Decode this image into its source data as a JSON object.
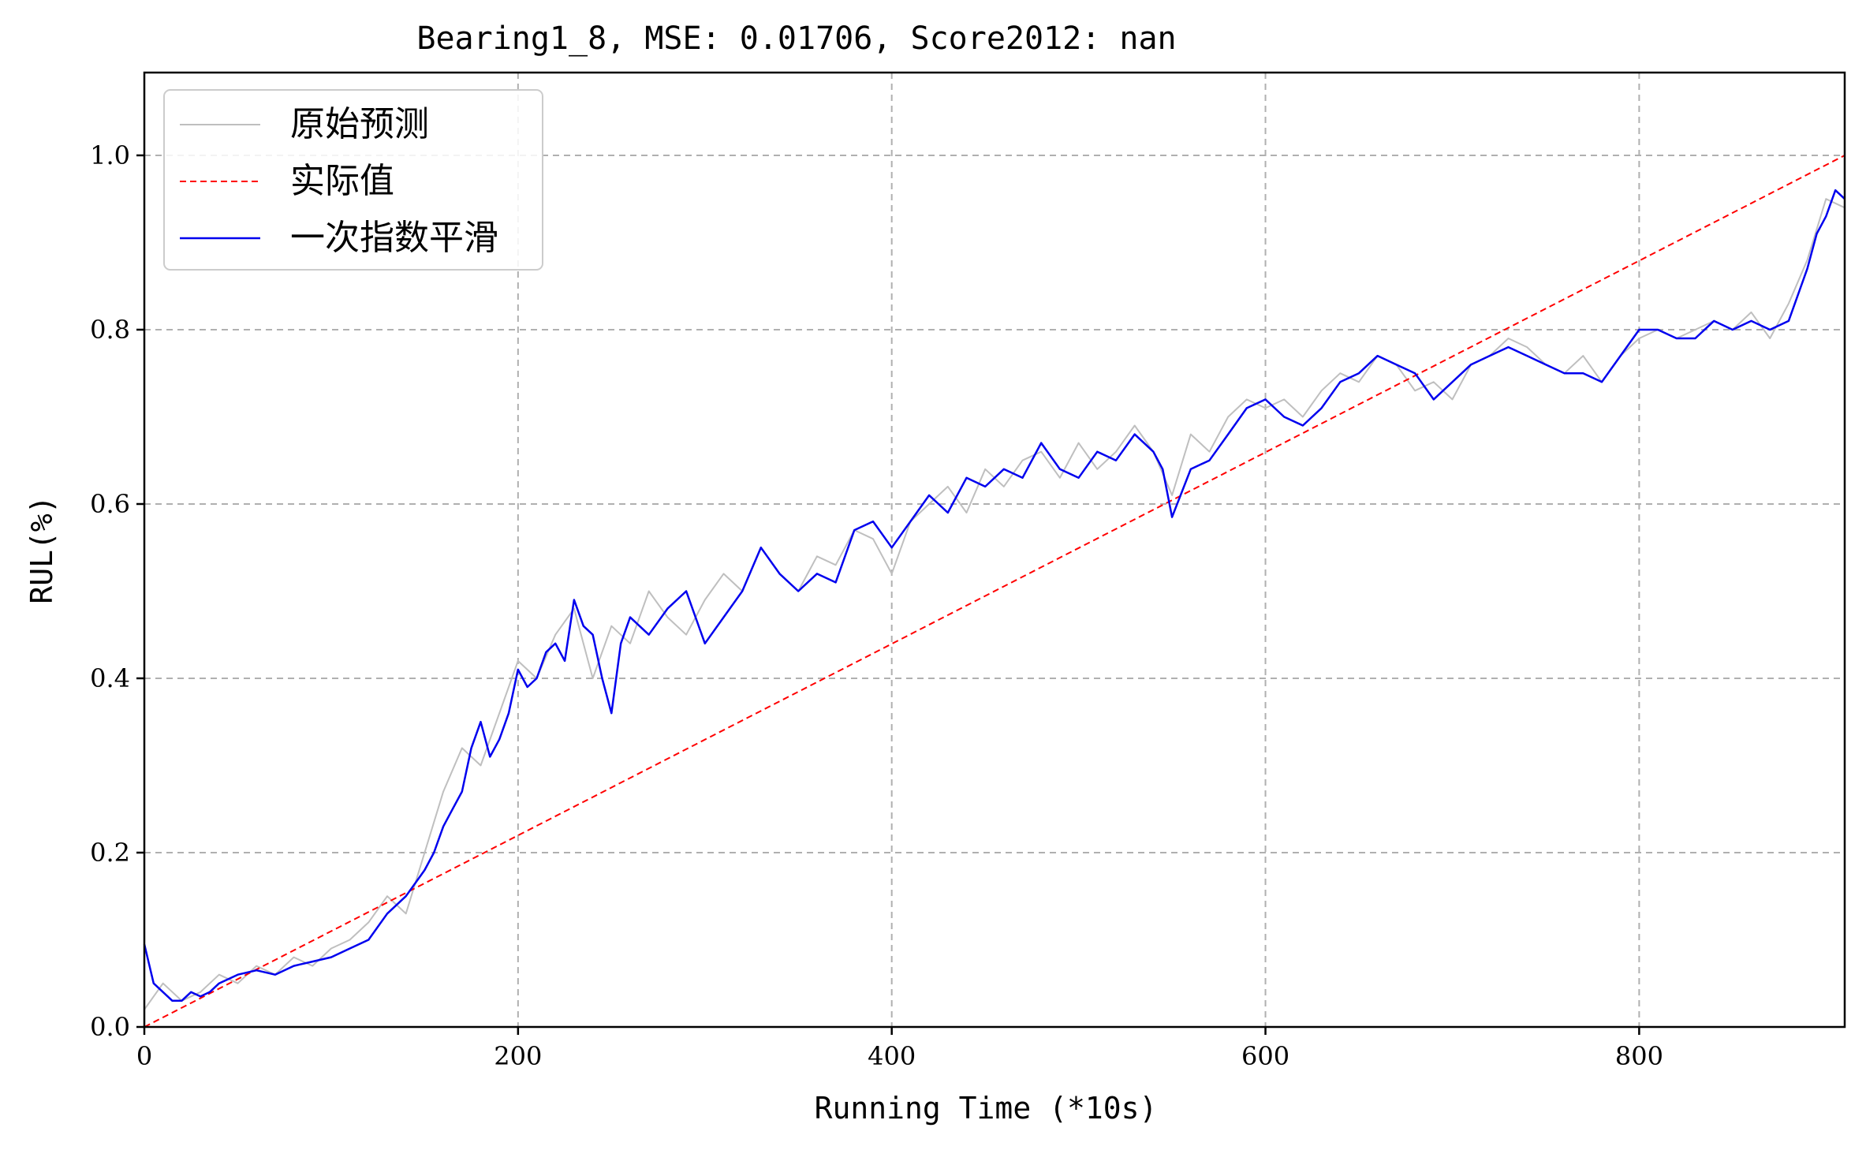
{
  "chart_data": {
    "type": "line",
    "title": "Bearing1_8, MSE: 0.01706, Score2012: nan",
    "xlabel": "Running Time (*10s)",
    "ylabel": "RUL(%)",
    "xlim": [
      0,
      910
    ],
    "ylim": [
      0.0,
      1.095
    ],
    "xticks": [
      0,
      200,
      400,
      600,
      800
    ],
    "xtick_labels": [
      "0",
      "200",
      "400",
      "600",
      "800"
    ],
    "yticks": [
      0.0,
      0.2,
      0.4,
      0.6,
      0.8,
      1.0
    ],
    "ytick_labels": [
      "0.0",
      "0.2",
      "0.4",
      "0.6",
      "0.8",
      "1.0"
    ],
    "grid": true,
    "legend_position": "top-left",
    "series": [
      {
        "name": "原始预测",
        "color": "#bfbfbf",
        "style": "solid",
        "x": [
          0,
          10,
          20,
          30,
          40,
          50,
          60,
          70,
          80,
          90,
          100,
          110,
          120,
          130,
          140,
          150,
          160,
          170,
          180,
          190,
          200,
          210,
          220,
          230,
          240,
          250,
          260,
          270,
          280,
          290,
          300,
          310,
          320,
          330,
          340,
          350,
          360,
          370,
          380,
          390,
          400,
          410,
          420,
          430,
          440,
          450,
          460,
          470,
          480,
          490,
          500,
          510,
          520,
          530,
          540,
          550,
          560,
          570,
          580,
          590,
          600,
          610,
          620,
          630,
          640,
          650,
          660,
          670,
          680,
          690,
          700,
          710,
          720,
          730,
          740,
          750,
          760,
          770,
          780,
          790,
          800,
          810,
          820,
          830,
          840,
          850,
          860,
          870,
          880,
          890,
          900,
          910
        ],
        "values": [
          0.02,
          0.05,
          0.03,
          0.04,
          0.06,
          0.05,
          0.07,
          0.06,
          0.08,
          0.07,
          0.09,
          0.1,
          0.12,
          0.15,
          0.13,
          0.2,
          0.27,
          0.32,
          0.3,
          0.36,
          0.42,
          0.4,
          0.45,
          0.48,
          0.4,
          0.46,
          0.44,
          0.5,
          0.47,
          0.45,
          0.49,
          0.52,
          0.5,
          0.55,
          0.52,
          0.5,
          0.54,
          0.53,
          0.57,
          0.56,
          0.52,
          0.58,
          0.6,
          0.62,
          0.59,
          0.64,
          0.62,
          0.65,
          0.66,
          0.63,
          0.67,
          0.64,
          0.66,
          0.69,
          0.66,
          0.61,
          0.68,
          0.66,
          0.7,
          0.72,
          0.71,
          0.72,
          0.7,
          0.73,
          0.75,
          0.74,
          0.77,
          0.76,
          0.73,
          0.74,
          0.72,
          0.76,
          0.77,
          0.79,
          0.78,
          0.76,
          0.75,
          0.77,
          0.74,
          0.77,
          0.79,
          0.8,
          0.79,
          0.8,
          0.81,
          0.8,
          0.82,
          0.79,
          0.83,
          0.88,
          0.95,
          0.94
        ]
      },
      {
        "name": "实际值",
        "color": "#ff0000",
        "style": "dashed",
        "x": [
          0,
          910
        ],
        "values": [
          0.0,
          1.0
        ]
      },
      {
        "name": "一次指数平滑",
        "color": "#0000ee",
        "style": "solid",
        "x": [
          0,
          5,
          10,
          15,
          20,
          25,
          30,
          35,
          40,
          50,
          60,
          70,
          80,
          90,
          100,
          110,
          120,
          130,
          140,
          150,
          155,
          160,
          165,
          170,
          175,
          180,
          185,
          190,
          195,
          200,
          205,
          210,
          215,
          220,
          225,
          230,
          235,
          240,
          245,
          250,
          255,
          260,
          270,
          280,
          290,
          300,
          310,
          320,
          330,
          340,
          350,
          360,
          370,
          380,
          390,
          400,
          410,
          420,
          430,
          440,
          450,
          460,
          470,
          480,
          490,
          500,
          510,
          520,
          530,
          540,
          545,
          550,
          560,
          570,
          580,
          590,
          600,
          610,
          620,
          630,
          640,
          650,
          660,
          670,
          680,
          690,
          700,
          710,
          720,
          730,
          740,
          750,
          760,
          770,
          780,
          790,
          800,
          810,
          820,
          830,
          840,
          850,
          860,
          870,
          880,
          890,
          895,
          900,
          905,
          910
        ],
        "values": [
          0.095,
          0.05,
          0.04,
          0.03,
          0.03,
          0.04,
          0.035,
          0.04,
          0.05,
          0.06,
          0.065,
          0.06,
          0.07,
          0.075,
          0.08,
          0.09,
          0.1,
          0.13,
          0.15,
          0.18,
          0.2,
          0.23,
          0.25,
          0.27,
          0.32,
          0.35,
          0.31,
          0.33,
          0.36,
          0.41,
          0.39,
          0.4,
          0.43,
          0.44,
          0.42,
          0.49,
          0.46,
          0.45,
          0.4,
          0.36,
          0.44,
          0.47,
          0.45,
          0.48,
          0.5,
          0.44,
          0.47,
          0.5,
          0.55,
          0.52,
          0.5,
          0.52,
          0.51,
          0.57,
          0.58,
          0.55,
          0.58,
          0.61,
          0.59,
          0.63,
          0.62,
          0.64,
          0.63,
          0.67,
          0.64,
          0.63,
          0.66,
          0.65,
          0.68,
          0.66,
          0.64,
          0.585,
          0.64,
          0.65,
          0.68,
          0.71,
          0.72,
          0.7,
          0.69,
          0.71,
          0.74,
          0.75,
          0.77,
          0.76,
          0.75,
          0.72,
          0.74,
          0.76,
          0.77,
          0.78,
          0.77,
          0.76,
          0.75,
          0.75,
          0.74,
          0.77,
          0.8,
          0.8,
          0.79,
          0.79,
          0.81,
          0.8,
          0.81,
          0.8,
          0.81,
          0.87,
          0.91,
          0.93,
          0.96,
          0.95
        ]
      }
    ]
  }
}
